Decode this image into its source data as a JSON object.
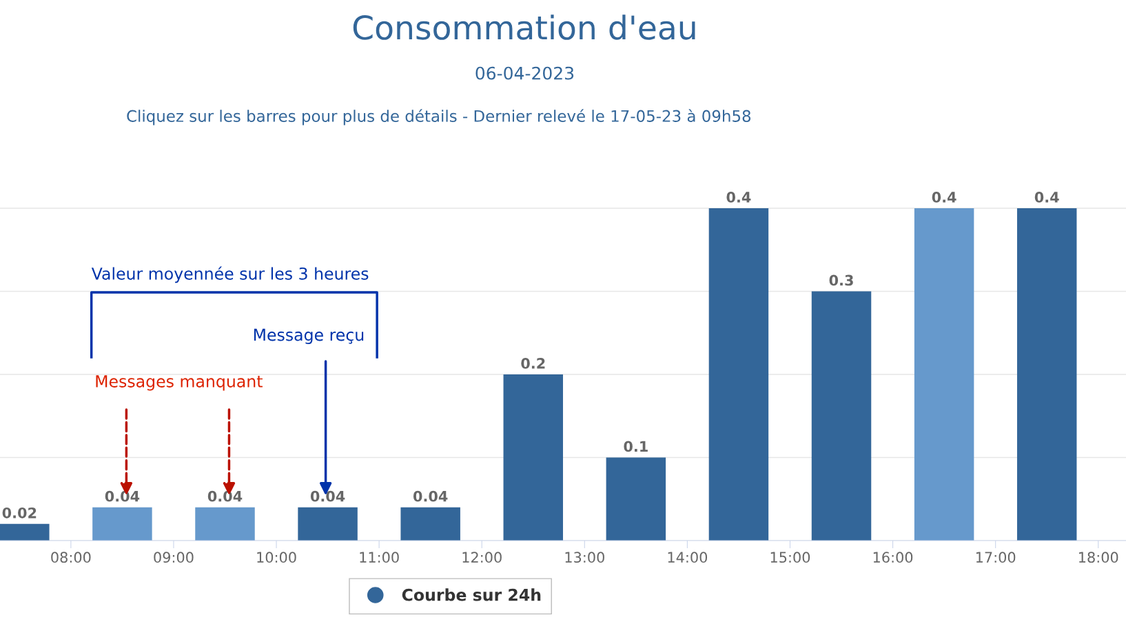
{
  "chart_data": {
    "type": "bar",
    "title": "Consommation d'eau",
    "subtitle": "06-04-2023",
    "x": [
      7.5,
      8.5,
      9.5,
      10.5,
      11.5,
      12.5,
      13.5,
      14.5,
      15.5,
      16.5,
      17.5
    ],
    "series": [
      {
        "name": "Courbe sur 24h",
        "color": "#336699",
        "colors": [
          "#336699",
          "#6699cc",
          "#6699cc",
          "#336699",
          "#336699",
          "#336699",
          "#336699",
          "#336699",
          "#336699",
          "#6699cc",
          "#336699"
        ],
        "values": [
          0.02,
          0.04,
          0.04,
          0.04,
          0.04,
          0.2,
          0.1,
          0.4,
          0.3,
          0.4,
          0.4
        ]
      }
    ],
    "data_labels": true,
    "xlim": [
      7.31,
      18.27
    ],
    "xticks": [
      {
        "value": 8,
        "label": "08:00"
      },
      {
        "value": 9,
        "label": "09:00"
      },
      {
        "value": 10,
        "label": "10:00"
      },
      {
        "value": 11,
        "label": "11:00"
      },
      {
        "value": 12,
        "label": "12:00"
      },
      {
        "value": 13,
        "label": "13:00"
      },
      {
        "value": 14,
        "label": "14:00"
      },
      {
        "value": 15,
        "label": "15:00"
      },
      {
        "value": 16,
        "label": "16:00"
      },
      {
        "value": 17,
        "label": "17:00"
      },
      {
        "value": 18,
        "label": "18:00"
      }
    ],
    "grid": "y",
    "legend": "bottom",
    "marker": "circle",
    "annotations": [
      "Cliquez sur les barres pour plus de détails - Dernier relevé le 17-05-23 à 09h58",
      "Valeur moyennée sur les 3 heures",
      "Message reçu",
      "Messages manquant"
    ]
  }
}
